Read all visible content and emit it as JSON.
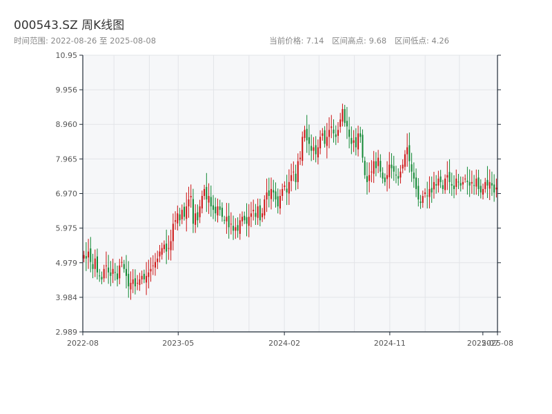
{
  "title": "000543.SZ 周K线图",
  "date_range": "时间范围: 2022-08-26 至 2025-08-08",
  "stats": {
    "current": "当前价格: 7.14",
    "high": "区间高点: 9.68",
    "low": "区间低点: 4.26"
  },
  "colors": {
    "up": "#cc1111",
    "down": "#118833",
    "plot_bg": "#f6f7f9",
    "grid": "#e2e4e8",
    "axis": "#1f2a36"
  },
  "chart_data": {
    "type": "candlestick",
    "title": "000543.SZ 周K线图",
    "xlabel": "",
    "ylabel": "",
    "ylim": [
      2.989,
      10.95
    ],
    "xlim": [
      "2022-08-26",
      "2025-08-08"
    ],
    "grid": true,
    "yticks": [
      "2.989",
      "3.984",
      "4.979",
      "5.975",
      "6.970",
      "7.965",
      "8.960",
      "9.956",
      "10.95"
    ],
    "xticks": [
      {
        "label": "2022-08",
        "date": "2022-08-26"
      },
      {
        "label": "2023-05",
        "date": "2023-05-01"
      },
      {
        "label": "2024-02",
        "date": "2024-02-01"
      },
      {
        "label": "2024-11",
        "date": "2024-11-01"
      },
      {
        "label": "2025-07",
        "date": "2025-07-01"
      },
      {
        "label": "2025-08",
        "date": "2025-08-08"
      }
    ],
    "weekly_close": [
      5.2,
      5.1,
      5.3,
      5.0,
      4.8,
      5.1,
      4.7,
      4.6,
      4.5,
      4.8,
      4.9,
      4.7,
      4.6,
      4.8,
      4.7,
      4.5,
      4.9,
      5.0,
      4.8,
      4.6,
      4.3,
      4.4,
      4.5,
      4.3,
      4.4,
      4.5,
      4.6,
      4.5,
      4.6,
      4.7,
      4.8,
      4.9,
      5.0,
      5.1,
      5.3,
      5.4,
      5.5,
      5.3,
      5.4,
      5.6,
      6.1,
      6.2,
      6.4,
      6.2,
      6.5,
      6.3,
      6.6,
      6.8,
      6.9,
      6.1,
      6.4,
      6.2,
      6.6,
      6.9,
      7.1,
      6.8,
      6.9,
      6.6,
      6.5,
      6.4,
      6.6,
      6.5,
      6.3,
      6.2,
      6.3,
      6.0,
      6.1,
      5.9,
      6.0,
      5.9,
      6.2,
      6.3,
      6.2,
      6.1,
      6.3,
      6.4,
      6.5,
      6.3,
      6.6,
      6.2,
      6.4,
      6.8,
      7.0,
      6.9,
      7.1,
      7.0,
      6.8,
      6.6,
      6.9,
      7.1,
      7.2,
      7.0,
      7.3,
      7.5,
      7.6,
      7.3,
      7.9,
      8.0,
      8.6,
      8.8,
      8.5,
      8.4,
      8.2,
      8.3,
      8.1,
      8.3,
      8.6,
      8.7,
      8.4,
      8.6,
      8.8,
      8.9,
      8.7,
      8.6,
      8.8,
      9.1,
      9.4,
      9.0,
      8.9,
      8.6,
      8.4,
      8.5,
      8.3,
      8.7,
      8.6,
      8.0,
      7.5,
      7.3,
      7.5,
      7.6,
      7.9,
      7.7,
      8.0,
      7.6,
      7.4,
      7.3,
      7.5,
      7.8,
      7.7,
      7.6,
      7.5,
      7.4,
      7.6,
      7.8,
      8.1,
      8.3,
      7.9,
      7.6,
      7.4,
      7.1,
      6.8,
      6.7,
      6.9,
      7.0,
      6.9,
      7.1,
      7.0,
      7.3,
      7.2,
      7.4,
      7.3,
      7.1,
      7.4,
      7.5,
      7.3,
      7.2,
      7.1,
      7.4,
      7.3,
      7.2,
      7.3,
      7.4,
      7.3,
      7.2,
      7.3,
      7.2,
      7.4,
      7.1,
      7.0,
      7.1,
      7.3,
      7.2,
      7.3,
      7.2,
      7.0,
      7.14
    ],
    "stats": {
      "current": 7.14,
      "high": 9.68,
      "low": 4.26
    }
  }
}
